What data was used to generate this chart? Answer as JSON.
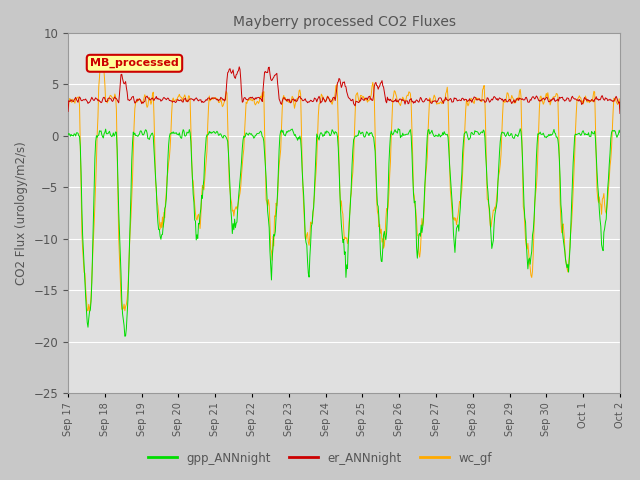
{
  "title": "Mayberry processed CO2 Fluxes",
  "ylabel": "CO2 Flux (urology/m2/s)",
  "ylim": [
    -25,
    10
  ],
  "yticks": [
    10,
    5,
    0,
    -5,
    -10,
    -15,
    -20,
    -25
  ],
  "n_days": 15,
  "n_points": 720,
  "legend_label": "MB_processed",
  "legend_text_color": "#cc0000",
  "legend_box_facecolor": "#ffff99",
  "legend_box_edgecolor": "#cc0000",
  "series_colors": {
    "gpp": "#00dd00",
    "er": "#cc0000",
    "wc": "#ffaa00"
  },
  "fig_facecolor": "#c8c8c8",
  "ax_facecolor": "#e0e0e0",
  "title_color": "#555555",
  "axis_label_color": "#555555",
  "tick_label_color": "#555555",
  "grid_color": "#ffffff",
  "x_tick_labels": [
    "Sep 17",
    "Sep 18",
    "Sep 19",
    "Sep 20",
    "Sep 21",
    "Sep 22",
    "Sep 23",
    "Sep 24",
    "Sep 25",
    "Sep 26",
    "Sep 27",
    "Sep 28",
    "Sep 29",
    "Sep 30",
    "Oct 1",
    "Oct 2"
  ],
  "legend_items": [
    "gpp_ANNnight",
    "er_ANNnight",
    "wc_gf"
  ]
}
